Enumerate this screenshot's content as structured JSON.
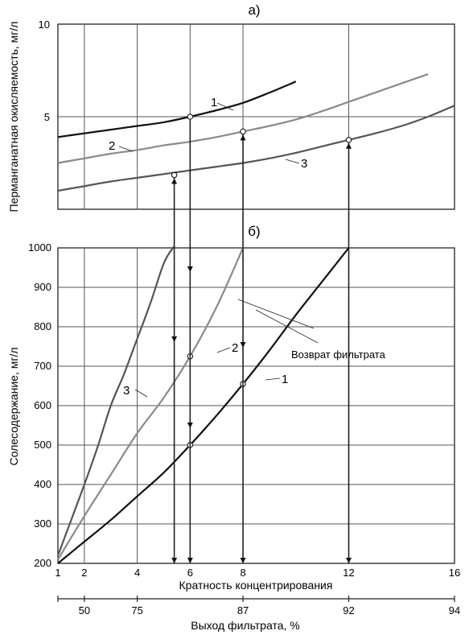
{
  "chart_data": [
    {
      "type": "line",
      "panel_label": "а)",
      "ylabel": "Перманганатная окисляемость, мг/л",
      "y_tick_labels": [
        "5",
        "10"
      ],
      "ylim": [
        0,
        10
      ],
      "xlim": [
        1,
        16
      ],
      "grid": true,
      "series": [
        {
          "name": "1",
          "color": "#111111",
          "x": [
            1,
            2,
            3,
            4,
            5,
            6,
            7,
            8,
            9,
            10
          ],
          "y": [
            3.9,
            4.1,
            4.3,
            4.5,
            4.7,
            5.0,
            5.35,
            5.75,
            6.3,
            6.9
          ]
        },
        {
          "name": "2",
          "color": "#8a8a8a",
          "x": [
            1,
            2,
            3,
            4,
            5,
            6,
            7,
            8,
            9,
            10,
            11,
            12,
            13,
            14,
            15
          ],
          "y": [
            2.5,
            2.75,
            3.0,
            3.2,
            3.45,
            3.65,
            3.9,
            4.2,
            4.5,
            4.85,
            5.3,
            5.8,
            6.3,
            6.8,
            7.3
          ]
        },
        {
          "name": "3",
          "color": "#555555",
          "x": [
            1,
            2,
            3,
            4,
            5,
            6,
            7,
            8,
            9,
            10,
            11,
            12,
            13,
            14,
            15,
            16
          ],
          "y": [
            1.0,
            1.25,
            1.5,
            1.7,
            1.9,
            2.1,
            2.3,
            2.5,
            2.75,
            3.05,
            3.4,
            3.75,
            4.1,
            4.5,
            5.0,
            5.6
          ]
        }
      ],
      "markers": [
        {
          "series": "3",
          "x": 5.4,
          "y": 1.85
        },
        {
          "series": "1",
          "x": 6,
          "y": 5.0
        },
        {
          "series": "2",
          "x": 8,
          "y": 4.2
        },
        {
          "series": "3",
          "x": 12,
          "y": 3.75
        }
      ]
    },
    {
      "type": "line",
      "panel_label": "б)",
      "ylabel": "Солесодержание, мг/л",
      "xlabel": "Кратность концентрирования",
      "x_tick_labels": [
        "1",
        "2",
        "4",
        "6",
        "8",
        "12",
        "16"
      ],
      "y_tick_labels": [
        "200",
        "300",
        "400",
        "500",
        "600",
        "700",
        "800",
        "900",
        "1000"
      ],
      "ylim": [
        200,
        1000
      ],
      "xlim": [
        1,
        16
      ],
      "grid": true,
      "series": [
        {
          "name": "1",
          "color": "#111111",
          "x": [
            1,
            2,
            3,
            4,
            5,
            6,
            7,
            8,
            9,
            10,
            11,
            12
          ],
          "y": [
            200,
            255,
            310,
            370,
            430,
            500,
            575,
            655,
            740,
            830,
            915,
            1000
          ]
        },
        {
          "name": "2",
          "color": "#8a8a8a",
          "x": [
            1,
            2,
            3,
            4,
            5,
            6,
            7,
            8
          ],
          "y": [
            210,
            320,
            425,
            530,
            620,
            725,
            850,
            1000
          ]
        },
        {
          "name": "3",
          "color": "#555555",
          "x": [
            1,
            2,
            2.5,
            3,
            3.5,
            4,
            4.5,
            5.0,
            5.35,
            5.4
          ],
          "y": [
            220,
            400,
            495,
            600,
            680,
            770,
            860,
            960,
            1000,
            1000
          ]
        }
      ],
      "markers": [
        {
          "series": "1",
          "x": 6,
          "y": 500
        },
        {
          "series": "1",
          "x": 8,
          "y": 655
        },
        {
          "series": "2",
          "x": 6,
          "y": 725
        }
      ],
      "annotation": "Возврат фильтрата"
    }
  ],
  "secondary_axis": {
    "label": "Выход фильтрата, %",
    "tick_labels": [
      "50",
      "75",
      "87",
      "92",
      "94"
    ]
  }
}
